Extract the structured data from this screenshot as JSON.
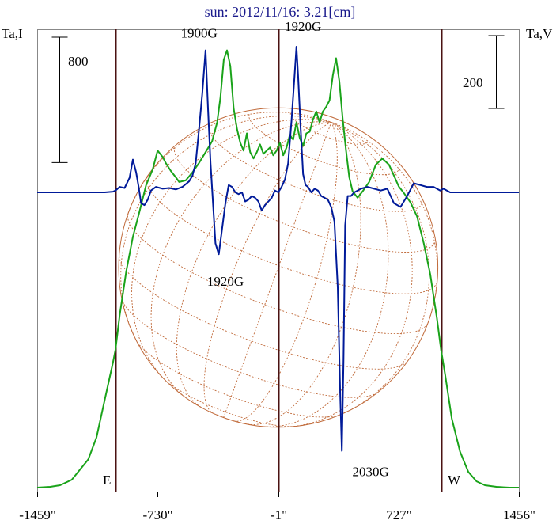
{
  "title": "sun: 2012/11/16: 3.21[cm]",
  "colors": {
    "title": "#1a1a8c",
    "frame": "#888888",
    "limb_lines": "#4a1212",
    "disk": "#c06a3a",
    "stokes_i": "#1aa31a",
    "stokes_v": "#001a99"
  },
  "left_axis": {
    "label": "Ta,I",
    "scale_bar": "800"
  },
  "right_axis": {
    "label": "Ta,V",
    "scale_bar": "200"
  },
  "x_ticks": [
    "-1459\"",
    "-730\"",
    "-1\"",
    "727\"",
    "1456\""
  ],
  "limb_labels": {
    "east": "E",
    "west": "W"
  },
  "annotations": [
    "1900G",
    "1920G",
    "1920G",
    "2030G"
  ],
  "chart_data": {
    "type": "line",
    "title": "sun: 2012/11/16: 3.21[cm]",
    "xlim": [
      -1459,
      1456
    ],
    "x_tick_values": [
      -1459,
      -730,
      -1,
      727,
      1456
    ],
    "x_tick_labels": [
      "-1459\"",
      "-730\"",
      "-1\"",
      "727\"",
      "1456\""
    ],
    "ylabel_left": "Ta,I",
    "ylabel_right": "Ta,V",
    "scale_bars": [
      {
        "axis": "left",
        "value": 800,
        "label": "800"
      },
      {
        "axis": "right",
        "value": 200,
        "label": "200"
      }
    ],
    "limb_positions": [
      -985,
      985
    ],
    "grid": false,
    "series": [
      {
        "axis": "left",
        "color": "#1aa31a",
        "x": [
          -1459,
          -1380,
          -1320,
          -1250,
          -1150,
          -1100,
          -1050,
          -1000,
          -985,
          -960,
          -920,
          -880,
          -840,
          -800,
          -760,
          -730,
          -700,
          -680,
          -650,
          -620,
          -600,
          -560,
          -520,
          -480,
          -440,
          -400,
          -370,
          -350,
          -330,
          -310,
          -290,
          -270,
          -250,
          -230,
          -210,
          -190,
          -170,
          -150,
          -130,
          -110,
          -90,
          -70,
          -50,
          -30,
          -10,
          10,
          30,
          50,
          70,
          90,
          110,
          130,
          150,
          170,
          190,
          210,
          230,
          250,
          270,
          290,
          310,
          330,
          350,
          370,
          390,
          410,
          430,
          450,
          480,
          510,
          550,
          590,
          630,
          670,
          700,
          730,
          760,
          800,
          840,
          880,
          920,
          960,
          985,
          1010,
          1050,
          1100,
          1150,
          1200,
          1250,
          1320,
          1400,
          1456
        ],
        "y": [
          0,
          5,
          15,
          50,
          180,
          320,
          560,
          800,
          880,
          1100,
          1380,
          1600,
          1760,
          1930,
          2030,
          2150,
          2110,
          2070,
          2020,
          1980,
          1950,
          1960,
          2010,
          2070,
          2140,
          2210,
          2330,
          2490,
          2730,
          2790,
          2690,
          2420,
          2290,
          2200,
          2150,
          2260,
          2140,
          2100,
          2140,
          2190,
          2130,
          2150,
          2170,
          2120,
          2150,
          2200,
          2120,
          2170,
          2250,
          2220,
          2330,
          2230,
          2180,
          2260,
          2270,
          2350,
          2400,
          2330,
          2400,
          2430,
          2470,
          2630,
          2740,
          2590,
          2350,
          2150,
          1980,
          1890,
          1850,
          1890,
          1950,
          2060,
          2100,
          2060,
          1990,
          1920,
          1880,
          1820,
          1730,
          1560,
          1360,
          1080,
          880,
          720,
          440,
          230,
          100,
          40,
          15,
          5,
          0,
          0
        ]
      },
      {
        "axis": "right",
        "color": "#001a99",
        "x": [
          -1459,
          -1200,
          -1050,
          -1000,
          -985,
          -960,
          -930,
          -900,
          -880,
          -860,
          -845,
          -830,
          -810,
          -790,
          -770,
          -740,
          -700,
          -660,
          -620,
          -580,
          -540,
          -520,
          -500,
          -480,
          -460,
          -440,
          -425,
          -410,
          -395,
          -380,
          -360,
          -340,
          -320,
          -300,
          -280,
          -260,
          -240,
          -220,
          -200,
          -180,
          -160,
          -140,
          -120,
          -100,
          -80,
          -60,
          -40,
          -20,
          0,
          20,
          40,
          60,
          80,
          100,
          110,
          120,
          135,
          150,
          165,
          180,
          200,
          220,
          240,
          260,
          280,
          300,
          320,
          340,
          360,
          375,
          385,
          395,
          405,
          420,
          440,
          460,
          480,
          500,
          540,
          580,
          620,
          660,
          700,
          740,
          780,
          820,
          860,
          900,
          940,
          980,
          1000,
          1040,
          1100,
          1300,
          1456
        ],
        "y": [
          0,
          0,
          0,
          2,
          5,
          15,
          12,
          40,
          90,
          55,
          15,
          -30,
          -35,
          -20,
          5,
          15,
          10,
          12,
          8,
          15,
          30,
          45,
          80,
          170,
          270,
          390,
          230,
          80,
          -30,
          -140,
          -170,
          -100,
          -30,
          20,
          15,
          0,
          -5,
          0,
          -25,
          -20,
          -10,
          -15,
          -25,
          -50,
          -35,
          -25,
          -15,
          5,
          0,
          15,
          35,
          80,
          195,
          330,
          400,
          320,
          180,
          50,
          20,
          15,
          0,
          10,
          5,
          -10,
          -15,
          -20,
          -40,
          -80,
          -260,
          -560,
          -710,
          -460,
          -90,
          -10,
          -10,
          0,
          5,
          10,
          15,
          10,
          5,
          10,
          -30,
          -40,
          -10,
          25,
          20,
          15,
          15,
          5,
          10,
          0,
          0,
          0,
          0
        ]
      }
    ],
    "annotations": [
      {
        "text": "1900G",
        "x": -470,
        "series": "left",
        "y": 2790
      },
      {
        "text": "1920G",
        "x": 150,
        "series": "right",
        "y": 400
      },
      {
        "text": "1920G",
        "x": -310,
        "series": "right",
        "y": -170
      },
      {
        "text": "2030G",
        "x": 540,
        "series": "right",
        "y": -710
      }
    ]
  }
}
